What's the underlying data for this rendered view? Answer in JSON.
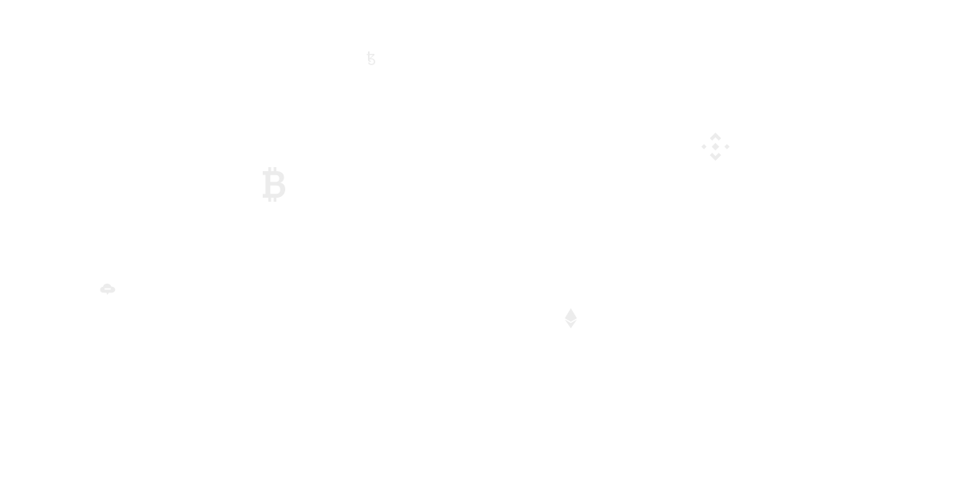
{
  "background_color": "#ffffff",
  "icon_color": "#ececec",
  "icons": [
    {
      "name": "tezos-icon",
      "glyph": "tezos"
    },
    {
      "name": "bnb-icon",
      "glyph": "binance-coin"
    },
    {
      "name": "bitcoin-icon",
      "glyph": "bitcoin"
    },
    {
      "name": "cloud-chat-icon",
      "glyph": "cloud-chat"
    },
    {
      "name": "ethereum-icon",
      "glyph": "ethereum"
    }
  ]
}
